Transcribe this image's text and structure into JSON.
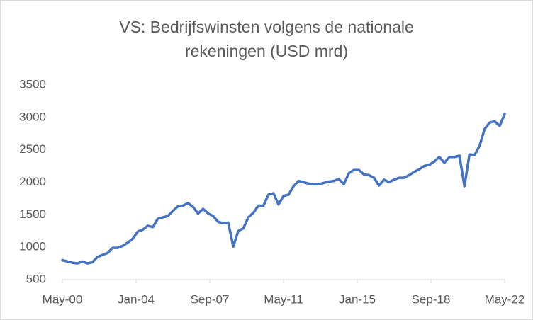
{
  "chart_data": {
    "type": "line",
    "title": [
      "VS: Bedrijfswinsten volgens de nationale",
      "rekeningen (USD mrd)"
    ],
    "x": [
      "2000-05",
      "2000-08",
      "2000-11",
      "2001-02",
      "2001-05",
      "2001-08",
      "2001-11",
      "2002-02",
      "2002-05",
      "2002-08",
      "2002-11",
      "2003-02",
      "2003-05",
      "2003-08",
      "2003-11",
      "2004-02",
      "2004-05",
      "2004-08",
      "2004-11",
      "2005-02",
      "2005-05",
      "2005-08",
      "2005-11",
      "2006-02",
      "2006-05",
      "2006-08",
      "2006-11",
      "2007-02",
      "2007-05",
      "2007-08",
      "2007-11",
      "2008-02",
      "2008-05",
      "2008-08",
      "2008-11",
      "2009-02",
      "2009-05",
      "2009-08",
      "2009-11",
      "2010-02",
      "2010-05",
      "2010-08",
      "2010-11",
      "2011-02",
      "2011-05",
      "2011-08",
      "2011-11",
      "2012-02",
      "2012-05",
      "2012-08",
      "2012-11",
      "2013-02",
      "2013-05",
      "2013-08",
      "2013-11",
      "2014-02",
      "2014-05",
      "2014-08",
      "2014-11",
      "2015-02",
      "2015-05",
      "2015-08",
      "2015-11",
      "2016-02",
      "2016-05",
      "2016-08",
      "2016-11",
      "2017-02",
      "2017-05",
      "2017-08",
      "2017-11",
      "2018-02",
      "2018-05",
      "2018-08",
      "2018-11",
      "2019-02",
      "2019-05",
      "2019-08",
      "2019-11",
      "2020-02",
      "2020-05",
      "2020-08",
      "2020-11",
      "2021-02",
      "2021-05",
      "2021-08",
      "2021-11",
      "2022-02",
      "2022-05"
    ],
    "series": [
      {
        "color": "#4472c4",
        "values": [
          800,
          780,
          760,
          750,
          780,
          750,
          770,
          850,
          880,
          910,
          990,
          990,
          1020,
          1070,
          1130,
          1240,
          1270,
          1330,
          1310,
          1440,
          1460,
          1480,
          1560,
          1630,
          1640,
          1680,
          1620,
          1520,
          1590,
          1520,
          1480,
          1390,
          1370,
          1380,
          1010,
          1250,
          1290,
          1460,
          1530,
          1640,
          1640,
          1810,
          1830,
          1660,
          1790,
          1810,
          1940,
          2020,
          2000,
          1980,
          1970,
          1970,
          1990,
          2010,
          2020,
          2050,
          1970,
          2140,
          2190,
          2190,
          2120,
          2110,
          2070,
          1950,
          2040,
          2000,
          2040,
          2070,
          2070,
          2110,
          2160,
          2200,
          2250,
          2270,
          2320,
          2390,
          2300,
          2390,
          2390,
          2410,
          1940,
          2430,
          2420,
          2560,
          2820,
          2920,
          2940,
          2870,
          3050
        ]
      }
    ],
    "xlim": [
      "2000-05",
      "2022-05"
    ],
    "xticks": [
      {
        "value": "2000-05",
        "label": "May-00"
      },
      {
        "value": "2004-01",
        "label": "Jan-04"
      },
      {
        "value": "2007-09",
        "label": "Sep-07"
      },
      {
        "value": "2011-05",
        "label": "May-11"
      },
      {
        "value": "2015-01",
        "label": "Jan-15"
      },
      {
        "value": "2018-09",
        "label": "Sep-18"
      },
      {
        "value": "2022-05",
        "label": "May-22"
      }
    ],
    "ylim": [
      500,
      3500
    ],
    "yticks": [
      500,
      1000,
      1500,
      2000,
      2500,
      3000,
      3500
    ]
  }
}
